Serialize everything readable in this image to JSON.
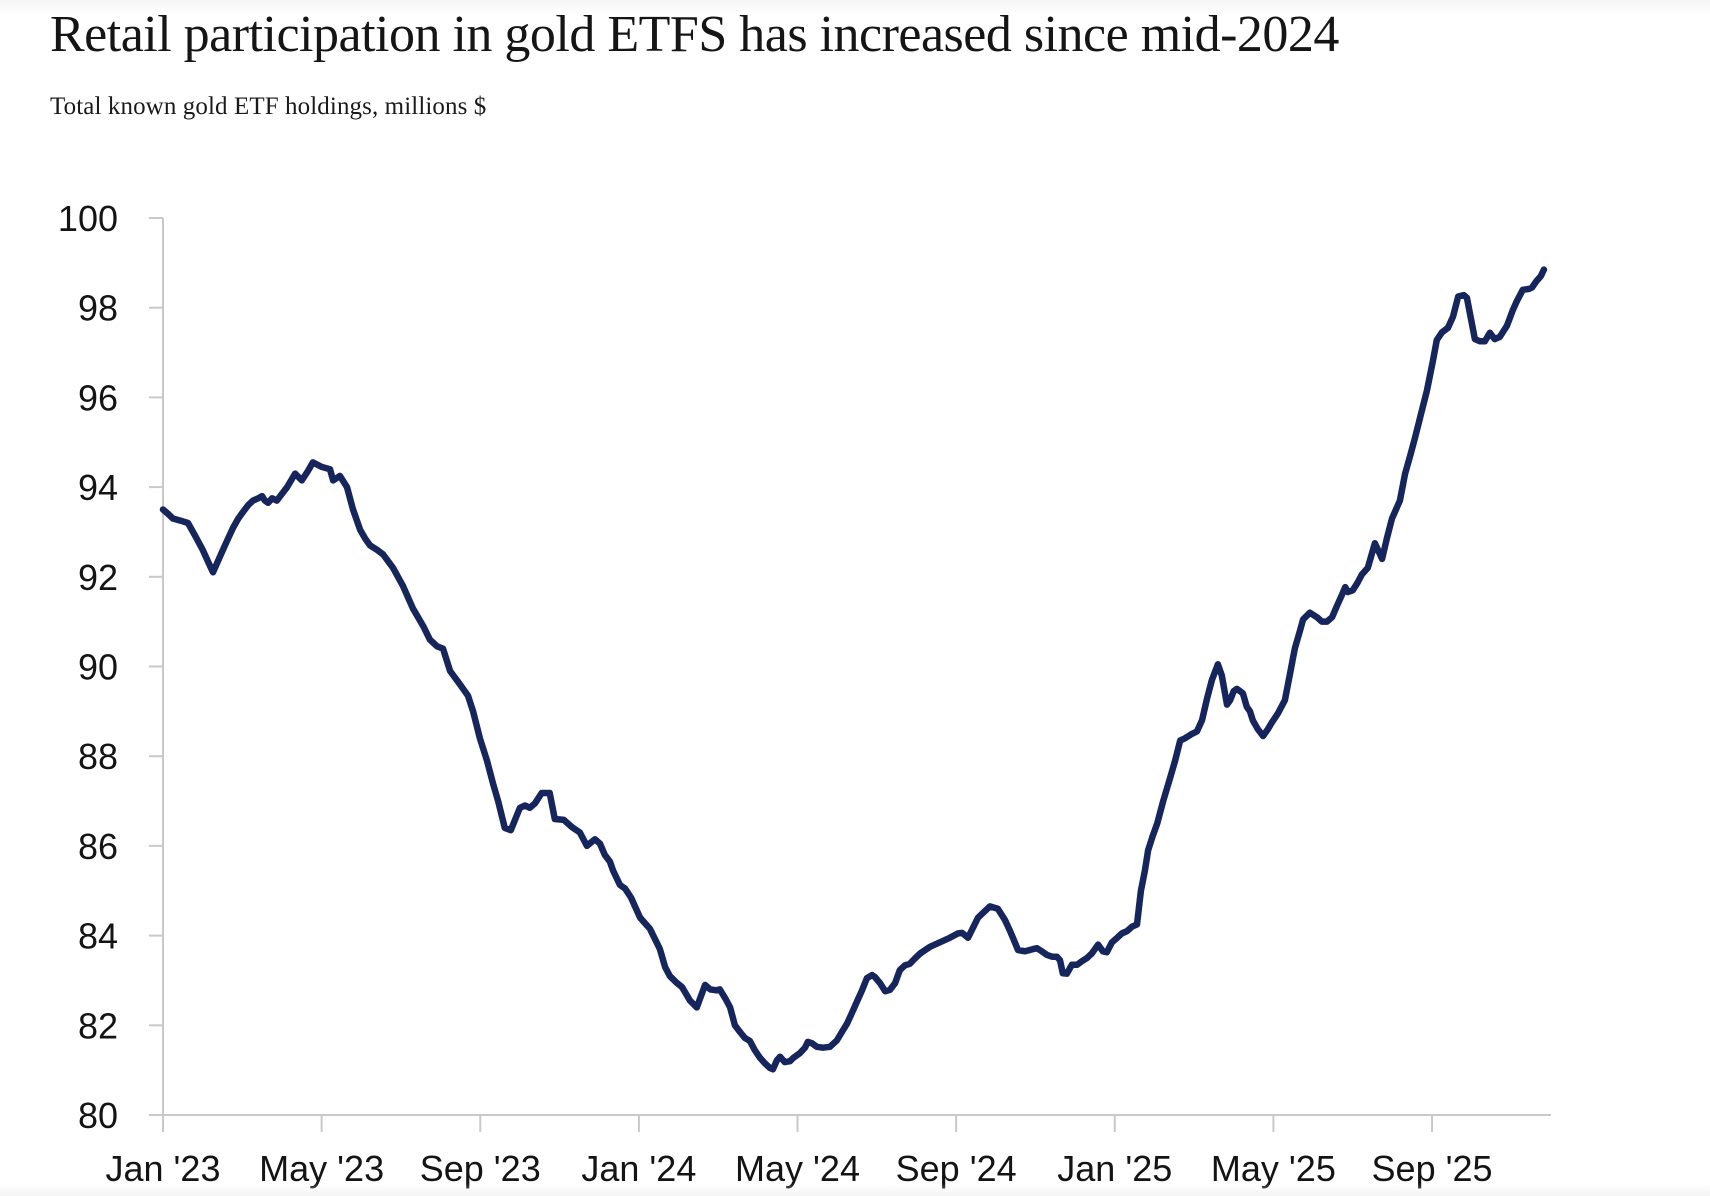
{
  "header": {
    "title": "Retail participation in gold ETFS has increased since mid-2024",
    "subtitle": "Total known gold ETF holdings, millions $"
  },
  "colors": {
    "background": "#ffffff",
    "axis": "#c9c9c9",
    "text": "#141414",
    "line": "#16265c"
  },
  "chart_data": {
    "type": "line",
    "title": "Retail participation in gold ETFS has increased since mid-2024",
    "subtitle": "Total known gold ETF holdings, millions $",
    "grid": false,
    "legend_position": "none",
    "x_axis": {
      "unit": "months since Jan 2023",
      "range": [
        0,
        35
      ],
      "tick_positions": [
        0,
        4,
        8,
        12,
        16,
        20,
        24,
        28,
        32
      ],
      "tick_labels": [
        "Jan '23",
        "May '23",
        "Sep '23",
        "Jan '24",
        "May '24",
        "Sep '24",
        "Jan '25",
        "May '25",
        "Sep '25"
      ]
    },
    "y_axis": {
      "label": "",
      "range": [
        80,
        100
      ],
      "tick_step": 2,
      "tick_values": [
        100,
        98,
        96,
        94,
        92,
        90,
        88,
        86,
        84,
        82,
        80
      ]
    },
    "series": [
      {
        "name": "Total known gold ETF holdings, millions $",
        "color": "#16265c",
        "points": [
          [
            0.0,
            93.5
          ],
          [
            0.13,
            93.4
          ],
          [
            0.25,
            93.3
          ],
          [
            0.45,
            93.25
          ],
          [
            0.63,
            93.2
          ],
          [
            0.82,
            92.9
          ],
          [
            1.0,
            92.6
          ],
          [
            1.13,
            92.35
          ],
          [
            1.26,
            92.1
          ],
          [
            1.51,
            92.6
          ],
          [
            1.64,
            92.85
          ],
          [
            1.77,
            93.1
          ],
          [
            1.9,
            93.3
          ],
          [
            2.02,
            93.45
          ],
          [
            2.15,
            93.6
          ],
          [
            2.27,
            93.7
          ],
          [
            2.4,
            93.75
          ],
          [
            2.5,
            93.8
          ],
          [
            2.57,
            93.7
          ],
          [
            2.65,
            93.65
          ],
          [
            2.75,
            93.75
          ],
          [
            2.87,
            93.7
          ],
          [
            3.0,
            93.85
          ],
          [
            3.13,
            94.0
          ],
          [
            3.33,
            94.3
          ],
          [
            3.5,
            94.15
          ],
          [
            3.65,
            94.35
          ],
          [
            3.78,
            94.55
          ],
          [
            4.0,
            94.45
          ],
          [
            4.21,
            94.4
          ],
          [
            4.29,
            94.15
          ],
          [
            4.46,
            94.25
          ],
          [
            4.64,
            94.0
          ],
          [
            4.79,
            93.5
          ],
          [
            4.97,
            93.05
          ],
          [
            5.1,
            92.85
          ],
          [
            5.22,
            92.7
          ],
          [
            5.4,
            92.6
          ],
          [
            5.55,
            92.5
          ],
          [
            5.8,
            92.2
          ],
          [
            6.05,
            91.8
          ],
          [
            6.3,
            91.3
          ],
          [
            6.56,
            90.9
          ],
          [
            6.73,
            90.6
          ],
          [
            6.91,
            90.45
          ],
          [
            7.06,
            90.4
          ],
          [
            7.24,
            89.9
          ],
          [
            7.49,
            89.6
          ],
          [
            7.69,
            89.35
          ],
          [
            7.82,
            89.0
          ],
          [
            7.99,
            88.4
          ],
          [
            8.17,
            87.9
          ],
          [
            8.32,
            87.4
          ],
          [
            8.45,
            87.0
          ],
          [
            8.62,
            86.4
          ],
          [
            8.77,
            86.35
          ],
          [
            9.0,
            86.85
          ],
          [
            9.13,
            86.9
          ],
          [
            9.25,
            86.85
          ],
          [
            9.38,
            86.95
          ],
          [
            9.55,
            87.18
          ],
          [
            9.75,
            87.18
          ],
          [
            9.88,
            86.6
          ],
          [
            10.11,
            86.58
          ],
          [
            10.31,
            86.42
          ],
          [
            10.51,
            86.3
          ],
          [
            10.69,
            86.0
          ],
          [
            10.89,
            86.15
          ],
          [
            11.02,
            86.05
          ],
          [
            11.14,
            85.8
          ],
          [
            11.27,
            85.65
          ],
          [
            11.35,
            85.45
          ],
          [
            11.52,
            85.13
          ],
          [
            11.65,
            85.05
          ],
          [
            11.8,
            84.85
          ],
          [
            12.03,
            84.4
          ],
          [
            12.28,
            84.15
          ],
          [
            12.53,
            83.7
          ],
          [
            12.66,
            83.3
          ],
          [
            12.78,
            83.1
          ],
          [
            12.95,
            82.95
          ],
          [
            13.09,
            82.85
          ],
          [
            13.29,
            82.55
          ],
          [
            13.46,
            82.4
          ],
          [
            13.67,
            82.9
          ],
          [
            13.8,
            82.8
          ],
          [
            13.95,
            82.78
          ],
          [
            14.04,
            82.8
          ],
          [
            14.18,
            82.6
          ],
          [
            14.3,
            82.4
          ],
          [
            14.42,
            82.0
          ],
          [
            14.55,
            81.85
          ],
          [
            14.67,
            81.72
          ],
          [
            14.8,
            81.65
          ],
          [
            14.92,
            81.45
          ],
          [
            15.05,
            81.28
          ],
          [
            15.18,
            81.15
          ],
          [
            15.3,
            81.05
          ],
          [
            15.38,
            81.02
          ],
          [
            15.48,
            81.22
          ],
          [
            15.56,
            81.3
          ],
          [
            15.68,
            81.18
          ],
          [
            15.81,
            81.2
          ],
          [
            15.89,
            81.27
          ],
          [
            16.06,
            81.38
          ],
          [
            16.19,
            81.5
          ],
          [
            16.26,
            81.63
          ],
          [
            16.36,
            81.6
          ],
          [
            16.49,
            81.52
          ],
          [
            16.64,
            81.5
          ],
          [
            16.82,
            81.52
          ],
          [
            16.99,
            81.66
          ],
          [
            17.12,
            81.85
          ],
          [
            17.25,
            82.04
          ],
          [
            17.37,
            82.27
          ],
          [
            17.5,
            82.53
          ],
          [
            17.63,
            82.79
          ],
          [
            17.75,
            83.05
          ],
          [
            17.88,
            83.12
          ],
          [
            17.95,
            83.08
          ],
          [
            18.08,
            82.94
          ],
          [
            18.21,
            82.76
          ],
          [
            18.33,
            82.79
          ],
          [
            18.46,
            82.94
          ],
          [
            18.58,
            83.23
          ],
          [
            18.71,
            83.34
          ],
          [
            18.83,
            83.37
          ],
          [
            18.96,
            83.49
          ],
          [
            19.09,
            83.6
          ],
          [
            19.34,
            83.75
          ],
          [
            19.59,
            83.85
          ],
          [
            19.84,
            83.95
          ],
          [
            20.05,
            84.05
          ],
          [
            20.15,
            84.06
          ],
          [
            20.3,
            83.95
          ],
          [
            20.55,
            84.4
          ],
          [
            20.85,
            84.65
          ],
          [
            21.05,
            84.6
          ],
          [
            21.23,
            84.35
          ],
          [
            21.36,
            84.1
          ],
          [
            21.48,
            83.85
          ],
          [
            21.56,
            83.68
          ],
          [
            21.74,
            83.65
          ],
          [
            21.94,
            83.7
          ],
          [
            22.04,
            83.72
          ],
          [
            22.16,
            83.65
          ],
          [
            22.29,
            83.57
          ],
          [
            22.42,
            83.53
          ],
          [
            22.54,
            83.53
          ],
          [
            22.62,
            83.45
          ],
          [
            22.69,
            83.16
          ],
          [
            22.79,
            83.15
          ],
          [
            22.92,
            83.35
          ],
          [
            23.05,
            83.35
          ],
          [
            23.17,
            83.43
          ],
          [
            23.3,
            83.5
          ],
          [
            23.42,
            83.6
          ],
          [
            23.58,
            83.8
          ],
          [
            23.7,
            83.65
          ],
          [
            23.8,
            83.63
          ],
          [
            23.93,
            83.85
          ],
          [
            24.06,
            83.95
          ],
          [
            24.18,
            84.05
          ],
          [
            24.31,
            84.1
          ],
          [
            24.44,
            84.2
          ],
          [
            24.56,
            84.25
          ],
          [
            24.66,
            85.0
          ],
          [
            24.76,
            85.45
          ],
          [
            24.84,
            85.9
          ],
          [
            24.95,
            86.2
          ],
          [
            25.07,
            86.5
          ],
          [
            25.22,
            87.0
          ],
          [
            25.39,
            87.5
          ],
          [
            25.52,
            87.9
          ],
          [
            25.65,
            88.35
          ],
          [
            25.77,
            88.4
          ],
          [
            25.95,
            88.5
          ],
          [
            26.07,
            88.55
          ],
          [
            26.2,
            88.8
          ],
          [
            26.33,
            89.3
          ],
          [
            26.45,
            89.7
          ],
          [
            26.6,
            90.05
          ],
          [
            26.7,
            89.8
          ],
          [
            26.78,
            89.4
          ],
          [
            26.83,
            89.15
          ],
          [
            26.91,
            89.25
          ],
          [
            27.0,
            89.45
          ],
          [
            27.08,
            89.5
          ],
          [
            27.16,
            89.45
          ],
          [
            27.23,
            89.4
          ],
          [
            27.33,
            89.1
          ],
          [
            27.41,
            89.0
          ],
          [
            27.48,
            88.8
          ],
          [
            27.61,
            88.6
          ],
          [
            27.74,
            88.45
          ],
          [
            27.86,
            88.6
          ],
          [
            27.96,
            88.75
          ],
          [
            28.11,
            88.95
          ],
          [
            28.29,
            89.25
          ],
          [
            28.42,
            89.85
          ],
          [
            28.54,
            90.4
          ],
          [
            28.67,
            90.8
          ],
          [
            28.75,
            91.05
          ],
          [
            28.92,
            91.2
          ],
          [
            29.1,
            91.1
          ],
          [
            29.22,
            91.0
          ],
          [
            29.35,
            91.0
          ],
          [
            29.48,
            91.1
          ],
          [
            29.6,
            91.35
          ],
          [
            29.73,
            91.6
          ],
          [
            29.81,
            91.77
          ],
          [
            29.88,
            91.66
          ],
          [
            30.0,
            91.7
          ],
          [
            30.11,
            91.85
          ],
          [
            30.23,
            92.05
          ],
          [
            30.38,
            92.2
          ],
          [
            30.56,
            92.75
          ],
          [
            30.74,
            92.4
          ],
          [
            30.86,
            92.85
          ],
          [
            30.99,
            93.3
          ],
          [
            31.19,
            93.7
          ],
          [
            31.32,
            94.3
          ],
          [
            31.45,
            94.7
          ],
          [
            31.57,
            95.1
          ],
          [
            31.7,
            95.55
          ],
          [
            31.87,
            96.15
          ],
          [
            32.02,
            96.8
          ],
          [
            32.12,
            97.28
          ],
          [
            32.25,
            97.45
          ],
          [
            32.4,
            97.55
          ],
          [
            32.53,
            97.8
          ],
          [
            32.66,
            98.25
          ],
          [
            32.8,
            98.28
          ],
          [
            32.88,
            98.22
          ],
          [
            32.95,
            97.9
          ],
          [
            33.08,
            97.3
          ],
          [
            33.21,
            97.25
          ],
          [
            33.33,
            97.25
          ],
          [
            33.46,
            97.44
          ],
          [
            33.58,
            97.3
          ],
          [
            33.71,
            97.35
          ],
          [
            33.89,
            97.6
          ],
          [
            34.04,
            97.95
          ],
          [
            34.14,
            98.15
          ],
          [
            34.29,
            98.4
          ],
          [
            34.45,
            98.42
          ],
          [
            34.52,
            98.45
          ],
          [
            34.64,
            98.6
          ],
          [
            34.74,
            98.7
          ],
          [
            34.82,
            98.85
          ]
        ]
      }
    ]
  }
}
